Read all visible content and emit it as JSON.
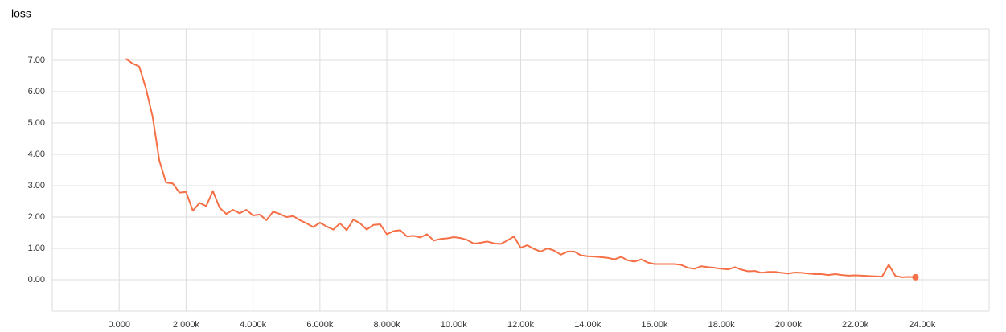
{
  "chart_data": {
    "type": "line",
    "title": "loss",
    "series": [
      {
        "name": "loss",
        "color": "#f57046",
        "x": [
          200,
          400,
          600,
          800,
          1000,
          1200,
          1400,
          1600,
          1800,
          2000,
          2200,
          2400,
          2600,
          2800,
          3000,
          3200,
          3400,
          3600,
          3800,
          4000,
          4200,
          4400,
          4600,
          4800,
          5000,
          5200,
          5400,
          5600,
          5800,
          6000,
          6200,
          6400,
          6600,
          6800,
          7000,
          7200,
          7400,
          7600,
          7800,
          8000,
          8200,
          8400,
          8600,
          8800,
          9000,
          9200,
          9400,
          9600,
          9800,
          10000,
          10200,
          10400,
          10600,
          10800,
          11000,
          11200,
          11400,
          11600,
          11800,
          12000,
          12200,
          12400,
          12600,
          12800,
          13000,
          13200,
          13400,
          13600,
          13800,
          14000,
          14200,
          14400,
          14600,
          14800,
          15000,
          15200,
          15400,
          15600,
          15800,
          16000,
          16200,
          16400,
          16600,
          16800,
          17000,
          17200,
          17400,
          17600,
          17800,
          18000,
          18200,
          18400,
          18600,
          18800,
          19000,
          19200,
          19400,
          19600,
          19800,
          20000,
          20200,
          20400,
          20600,
          20800,
          21000,
          21200,
          21400,
          21600,
          21800,
          22000,
          22200,
          22400,
          22600,
          22800,
          23000,
          23200,
          23400,
          23600,
          23800
        ],
        "values": [
          7.05,
          6.9,
          6.8,
          6.1,
          5.2,
          3.8,
          3.1,
          3.07,
          2.78,
          2.8,
          2.2,
          2.45,
          2.35,
          2.83,
          2.3,
          2.1,
          2.23,
          2.12,
          2.23,
          2.05,
          2.08,
          1.9,
          2.17,
          2.1,
          2.0,
          2.03,
          1.9,
          1.8,
          1.68,
          1.82,
          1.7,
          1.6,
          1.8,
          1.58,
          1.92,
          1.8,
          1.6,
          1.75,
          1.77,
          1.45,
          1.55,
          1.58,
          1.38,
          1.4,
          1.35,
          1.45,
          1.25,
          1.3,
          1.32,
          1.36,
          1.33,
          1.27,
          1.15,
          1.18,
          1.22,
          1.16,
          1.14,
          1.25,
          1.38,
          1.02,
          1.1,
          0.98,
          0.9,
          1.0,
          0.93,
          0.8,
          0.9,
          0.9,
          0.78,
          0.75,
          0.74,
          0.72,
          0.7,
          0.65,
          0.73,
          0.62,
          0.58,
          0.65,
          0.55,
          0.5,
          0.5,
          0.5,
          0.5,
          0.47,
          0.38,
          0.35,
          0.43,
          0.4,
          0.38,
          0.35,
          0.33,
          0.4,
          0.32,
          0.27,
          0.28,
          0.22,
          0.25,
          0.25,
          0.22,
          0.2,
          0.23,
          0.22,
          0.2,
          0.18,
          0.18,
          0.15,
          0.18,
          0.15,
          0.13,
          0.14,
          0.13,
          0.12,
          0.11,
          0.1,
          0.48,
          0.12,
          0.08,
          0.09,
          0.08
        ]
      }
    ],
    "xlim": [
      -2000,
      26000
    ],
    "xticks": [
      {
        "value": 0,
        "label": "0.000"
      },
      {
        "value": 2000,
        "label": "2.000k"
      },
      {
        "value": 4000,
        "label": "4.000k"
      },
      {
        "value": 6000,
        "label": "6.000k"
      },
      {
        "value": 8000,
        "label": "8.000k"
      },
      {
        "value": 10000,
        "label": "10.00k"
      },
      {
        "value": 12000,
        "label": "12.00k"
      },
      {
        "value": 14000,
        "label": "14.00k"
      },
      {
        "value": 16000,
        "label": "16.00k"
      },
      {
        "value": 18000,
        "label": "18.00k"
      },
      {
        "value": 20000,
        "label": "20.00k"
      },
      {
        "value": 22000,
        "label": "22.00k"
      },
      {
        "value": 24000,
        "label": "24.00k"
      }
    ],
    "ylim": [
      -1,
      8
    ],
    "yticks": [
      {
        "value": 0,
        "label": "0.00"
      },
      {
        "value": 1,
        "label": "1.00"
      },
      {
        "value": 2,
        "label": "2.00"
      },
      {
        "value": 3,
        "label": "3.00"
      },
      {
        "value": 4,
        "label": "4.00"
      },
      {
        "value": 5,
        "label": "5.00"
      },
      {
        "value": 6,
        "label": "6.00"
      },
      {
        "value": 7,
        "label": "7.00"
      }
    ],
    "grid": true
  }
}
